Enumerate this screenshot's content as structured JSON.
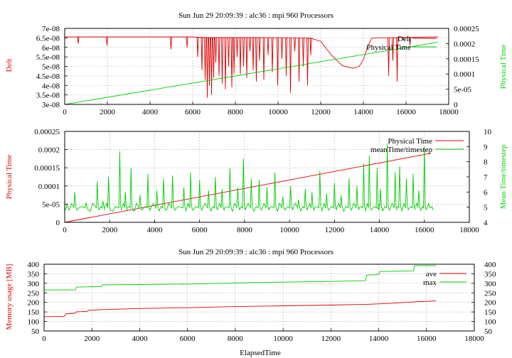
{
  "chart_data": [
    {
      "type": "line",
      "title": "Sun Jun 29 20:09:39 : alc36 : mpi 960 Processors",
      "xlabel": "",
      "ylabel": "Delt",
      "y2label": "Physical Time",
      "xlim": [
        0,
        18000
      ],
      "ylim": [
        3e-08,
        7e-08
      ],
      "y2lim": [
        0,
        0.00025
      ],
      "xticks": [
        "0",
        "2000",
        "4000",
        "6000",
        "8000",
        "10000",
        "12000",
        "14000",
        "16000",
        "18000"
      ],
      "yticks": [
        "3e-08",
        "3.5e-08",
        "4e-08",
        "4.5e-08",
        "5e-08",
        "5.5e-08",
        "6e-08",
        "6.5e-08",
        "7e-08"
      ],
      "y2ticks": [
        "0",
        "5e-05",
        "0.0001",
        "0.00015",
        "0.0002",
        "0.00025"
      ],
      "grid": true,
      "legend": "top-right",
      "series": [
        {
          "name": "Delt",
          "axis": "y",
          "color": "#dd0000",
          "base": [
            [
              0,
              6.55e-08
            ],
            [
              6000,
              6.55e-08
            ],
            [
              6600,
              6.52e-08
            ],
            [
              9000,
              6.52e-08
            ],
            [
              11500,
              6.5e-08
            ],
            [
              12000,
              6.32e-08
            ],
            [
              12500,
              5.6e-08
            ],
            [
              13000,
              5.05e-08
            ],
            [
              13500,
              4.9e-08
            ],
            [
              13800,
              5e-08
            ],
            [
              14000,
              5.35e-08
            ],
            [
              14200,
              6.05e-08
            ],
            [
              14400,
              6.5e-08
            ],
            [
              17500,
              6.55e-08
            ]
          ],
          "spikes": [
            [
              600,
              6.2e-08
            ],
            [
              1950,
              6.1e-08
            ],
            [
              4950,
              5.9e-08
            ],
            [
              5700,
              6e-08
            ],
            [
              6200,
              5.5e-08
            ],
            [
              6400,
              4.8e-08
            ],
            [
              6550,
              4.3e-08
            ],
            [
              6650,
              3.35e-08
            ],
            [
              6750,
              4e-08
            ],
            [
              6850,
              3.5e-08
            ],
            [
              6950,
              4.4e-08
            ],
            [
              7050,
              5.2e-08
            ],
            [
              7200,
              4.5e-08
            ],
            [
              7350,
              4.1e-08
            ],
            [
              7500,
              3.8e-08
            ],
            [
              7650,
              5e-08
            ],
            [
              7800,
              3.9e-08
            ],
            [
              7900,
              4.6e-08
            ],
            [
              8050,
              5.5e-08
            ],
            [
              8200,
              4.6e-08
            ],
            [
              8350,
              5e-08
            ],
            [
              8500,
              4.4e-08
            ],
            [
              8650,
              5.8e-08
            ],
            [
              8800,
              4.8e-08
            ],
            [
              8950,
              4.2e-08
            ],
            [
              9100,
              5.3e-08
            ],
            [
              9300,
              4.3e-08
            ],
            [
              9500,
              5.6e-08
            ],
            [
              9700,
              4.7e-08
            ],
            [
              9950,
              4e-08
            ],
            [
              10150,
              5.4e-08
            ],
            [
              10350,
              4.5e-08
            ],
            [
              10550,
              3.6e-08
            ],
            [
              10750,
              5.8e-08
            ],
            [
              10950,
              4.2e-08
            ],
            [
              11150,
              5e-08
            ],
            [
              11350,
              4e-08
            ],
            [
              11500,
              5.6e-08
            ],
            [
              15150,
              4.5e-08
            ],
            [
              15350,
              5.3e-08
            ],
            [
              15550,
              4.2e-08
            ],
            [
              15850,
              6.4e-08
            ],
            [
              16150,
              6.1e-08
            ]
          ]
        },
        {
          "name": "Physical Time",
          "axis": "y2",
          "color": "#00cc00",
          "points": [
            [
              0,
              0
            ],
            [
              17500,
              0.000205
            ]
          ]
        }
      ]
    },
    {
      "type": "line",
      "title": "",
      "xlabel": "",
      "ylabel": "Physical Time",
      "y2label": "Mean Time/timestep",
      "xlim": [
        0,
        18000
      ],
      "ylim": [
        0,
        0.00025
      ],
      "y2lim": [
        4,
        10
      ],
      "xticks": [
        "0",
        "2000",
        "4000",
        "6000",
        "8000",
        "10000",
        "12000",
        "14000",
        "16000",
        "18000"
      ],
      "yticks": [
        "0",
        "5e-05",
        "0.0001",
        "0.00015",
        "0.0002",
        "0.00025"
      ],
      "y2ticks": [
        "4",
        "5",
        "6",
        "7",
        "8",
        "9",
        "10"
      ],
      "grid": true,
      "legend": "top-right",
      "series": [
        {
          "name": "Physical Time",
          "axis": "y",
          "color": "#dd0000",
          "points": [
            [
              0,
              0
            ],
            [
              16300,
              0.00019
            ]
          ]
        },
        {
          "name": "meanTime/timestep",
          "axis": "y2",
          "color": "#00cc00",
          "baseline": 4.85,
          "peaks": [
            [
              100,
              5.2
            ],
            [
              450,
              6.0
            ],
            [
              950,
              5.3
            ],
            [
              1450,
              6.7
            ],
            [
              1700,
              5.4
            ],
            [
              1950,
              7.0
            ],
            [
              2450,
              8.7
            ],
            [
              2700,
              6.0
            ],
            [
              2950,
              7.6
            ],
            [
              3350,
              5.8
            ],
            [
              3700,
              7.2
            ],
            [
              4100,
              6.1
            ],
            [
              4400,
              6.9
            ],
            [
              4800,
              7.1
            ],
            [
              5300,
              6.3
            ],
            [
              5600,
              7.3
            ],
            [
              6000,
              6.8
            ],
            [
              6400,
              6.1
            ],
            [
              6700,
              7.0
            ],
            [
              7000,
              6.2
            ],
            [
              7350,
              7.6
            ],
            [
              7700,
              6.3
            ],
            [
              7950,
              8.2
            ],
            [
              8300,
              6.9
            ],
            [
              8650,
              6.8
            ],
            [
              9000,
              6.3
            ],
            [
              9350,
              7.3
            ],
            [
              9700,
              5.7
            ],
            [
              10050,
              6.4
            ],
            [
              10400,
              5.5
            ],
            [
              10700,
              6.2
            ],
            [
              11000,
              6.0
            ],
            [
              11350,
              7.4
            ],
            [
              11650,
              5.9
            ],
            [
              12000,
              6.6
            ],
            [
              12300,
              5.8
            ],
            [
              12650,
              6.9
            ],
            [
              13000,
              6.4
            ],
            [
              13300,
              7.9
            ],
            [
              13550,
              8.4
            ],
            [
              13900,
              7.6
            ],
            [
              14050,
              6.2
            ],
            [
              14350,
              9.2
            ],
            [
              14700,
              7.3
            ],
            [
              14900,
              7.7
            ],
            [
              15200,
              6.9
            ],
            [
              15500,
              7.2
            ],
            [
              15750,
              6.1
            ],
            [
              16000,
              9.0
            ],
            [
              16300,
              5.0
            ]
          ]
        }
      ]
    },
    {
      "type": "line",
      "title": "Sun Jun 29 20:09:39 : alc36 : mpi 960 Processors",
      "xlabel": "ElapsedTime",
      "ylabel": "Memory usage [MB]",
      "y2label": "",
      "xlim": [
        0,
        18000
      ],
      "ylim": [
        50,
        400
      ],
      "y2lim": [
        50,
        400
      ],
      "xticks": [
        "0",
        "2000",
        "4000",
        "6000",
        "8000",
        "10000",
        "12000",
        "14000",
        "16000",
        "18000"
      ],
      "yticks": [
        "50",
        "100",
        "150",
        "200",
        "250",
        "300",
        "350",
        "400"
      ],
      "y2ticks": [
        "50",
        "100",
        "150",
        "200",
        "250",
        "300",
        "350",
        "400"
      ],
      "grid": true,
      "legend": "top-right",
      "series": [
        {
          "name": "ave",
          "axis": "y",
          "color": "#dd0000",
          "points": [
            [
              0,
              125
            ],
            [
              850,
              127
            ],
            [
              900,
              140
            ],
            [
              1300,
              143
            ],
            [
              1350,
              150
            ],
            [
              1800,
              153
            ],
            [
              1850,
              158
            ],
            [
              2400,
              162
            ],
            [
              4000,
              168
            ],
            [
              6000,
              172
            ],
            [
              8000,
              178
            ],
            [
              10000,
              182
            ],
            [
              12000,
              186
            ],
            [
              13500,
              190
            ],
            [
              14500,
              195
            ],
            [
              15500,
              203
            ],
            [
              16400,
              208
            ]
          ]
        },
        {
          "name": "max",
          "axis": "y",
          "color": "#00cc00",
          "points": [
            [
              0,
              265
            ],
            [
              1300,
              266
            ],
            [
              1350,
              280
            ],
            [
              2400,
              283
            ],
            [
              2450,
              292
            ],
            [
              6000,
              296
            ],
            [
              8000,
              302
            ],
            [
              10000,
              306
            ],
            [
              12000,
              310
            ],
            [
              13450,
              314
            ],
            [
              13500,
              343
            ],
            [
              14000,
              346
            ],
            [
              14050,
              362
            ],
            [
              15450,
              365
            ],
            [
              15500,
              392
            ],
            [
              16400,
              392
            ]
          ]
        }
      ]
    }
  ]
}
